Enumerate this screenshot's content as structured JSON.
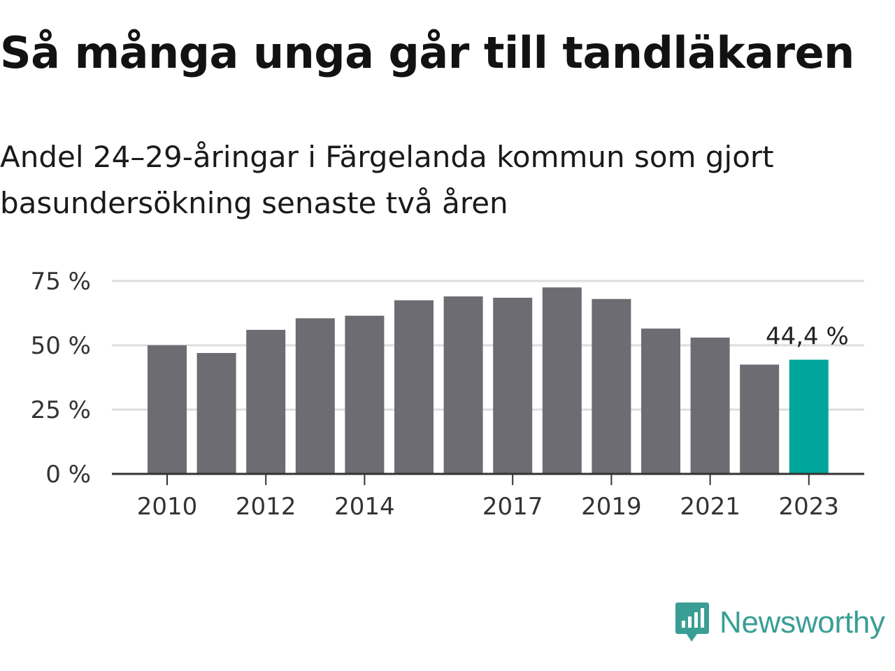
{
  "title": "Så många unga går till tandläkaren",
  "subtitle": "Andel 24–29-åringar i Färgelanda kommun som gjort basundersökning senaste två åren",
  "brand": {
    "name": "Newsworthy",
    "icon": "newsworthy-logo-icon",
    "color": "#3a9e94"
  },
  "chart_data": {
    "type": "bar",
    "categories": [
      "2010",
      "2011",
      "2012",
      "2013",
      "2014",
      "2015",
      "2016",
      "2017",
      "2018",
      "2019",
      "2020",
      "2021",
      "2022",
      "2023"
    ],
    "values": [
      50,
      47,
      56,
      60.5,
      61.5,
      67.5,
      69,
      68.5,
      72.5,
      68,
      56.5,
      53,
      42.5,
      44.4
    ],
    "x_tick_labels": [
      "2010",
      "2012",
      "2014",
      "2017",
      "2019",
      "2021",
      "2023"
    ],
    "y_ticks": [
      0,
      25,
      50,
      75
    ],
    "y_tick_labels": [
      "0 %",
      "25 %",
      "50 %",
      "75 %"
    ],
    "ylim": [
      0,
      75
    ],
    "grid": true,
    "highlight": {
      "category": "2023",
      "label": "44,4 %"
    },
    "colors": {
      "bar": "#6d6c72",
      "highlight": "#00a69c",
      "grid": "#dddddd",
      "axis": "#333333"
    }
  }
}
